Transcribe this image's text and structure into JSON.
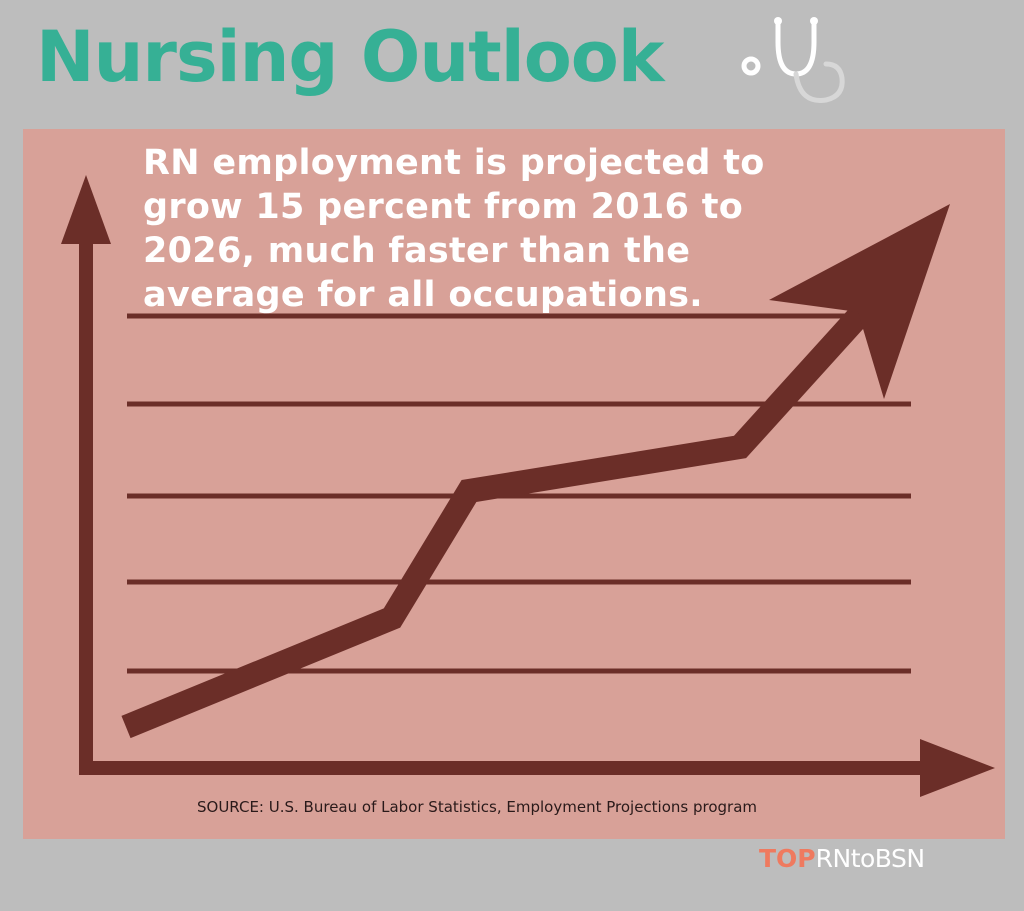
{
  "title": "Nursing Outlook",
  "icon": "stethoscope-icon",
  "headline": "RN employment is projected to grow 15 percent from 2016 to 2026, much faster than the average for all occupations.",
  "source": "SOURCE: U.S. Bureau of Labor Statistics, Employment Projections program",
  "brand": {
    "emphasis": "TOP",
    "rest": "RNtoBSN"
  },
  "colors": {
    "background": "#bdbdbd",
    "title": "#36b095",
    "panel": "#d8a198",
    "arrow": "#6b2e28",
    "brand_emphasis": "#ef7a5f",
    "headline": "#ffffff"
  }
}
